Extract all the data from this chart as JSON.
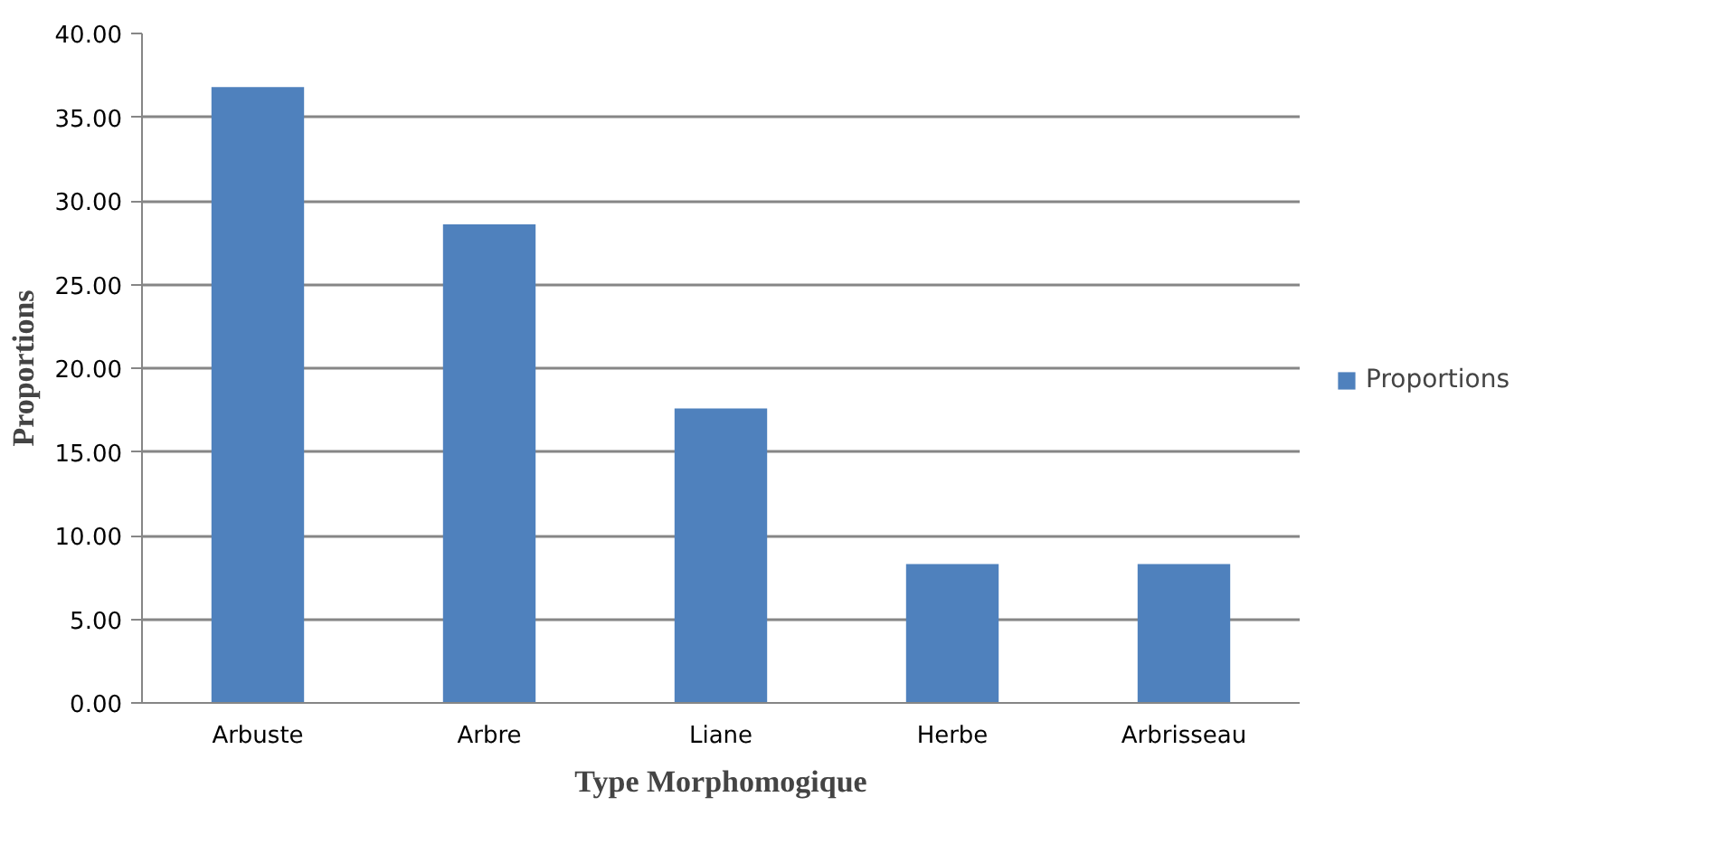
{
  "chart_data": {
    "type": "bar",
    "xlabel": "Type Morphomogique",
    "ylabel": "Proportions",
    "categories": [
      "Arbuste",
      "Arbre",
      "Liane",
      "Herbe",
      "Arbrisseau"
    ],
    "series": [
      {
        "name": "Proportions",
        "color": "#4f81bd",
        "values": [
          36.8,
          28.6,
          17.6,
          8.3,
          8.3
        ]
      }
    ],
    "ylim": [
      0,
      40
    ],
    "yticks": [
      {
        "value": 0,
        "label": "0.00"
      },
      {
        "value": 5,
        "label": "5.00"
      },
      {
        "value": 10,
        "label": "10.00"
      },
      {
        "value": 15,
        "label": "15.00"
      },
      {
        "value": 20,
        "label": "20.00"
      },
      {
        "value": 25,
        "label": "25.00"
      },
      {
        "value": 30,
        "label": "30.00"
      },
      {
        "value": 35,
        "label": "35.00"
      },
      {
        "value": 40,
        "label": "40.00"
      }
    ],
    "grid": "y",
    "legend": "right"
  }
}
